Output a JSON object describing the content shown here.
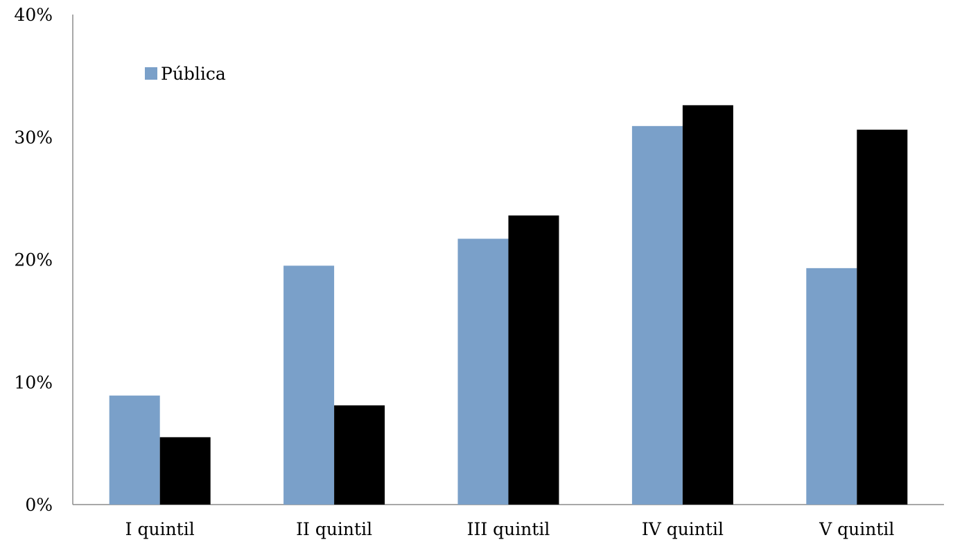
{
  "chart_data": {
    "type": "bar",
    "categories": [
      "I quintil",
      "II quintil",
      "III quintil",
      "IV quintil",
      "V quintil"
    ],
    "series": [
      {
        "name": "Pública",
        "color": "#7aa0c9",
        "values": [
          8.9,
          19.5,
          21.7,
          30.9,
          19.3
        ]
      },
      {
        "color": "#000000",
        "values": [
          5.5,
          8.1,
          23.6,
          32.6,
          30.6
        ]
      }
    ],
    "y_ticks": [
      "0%",
      "10%",
      "20%",
      "30%",
      "40%"
    ],
    "ylim": [
      0,
      40
    ],
    "grid": false,
    "legend": {
      "placement": "top-left",
      "entries": [
        "Pública"
      ]
    },
    "title": "",
    "xlabel": "",
    "ylabel": ""
  }
}
